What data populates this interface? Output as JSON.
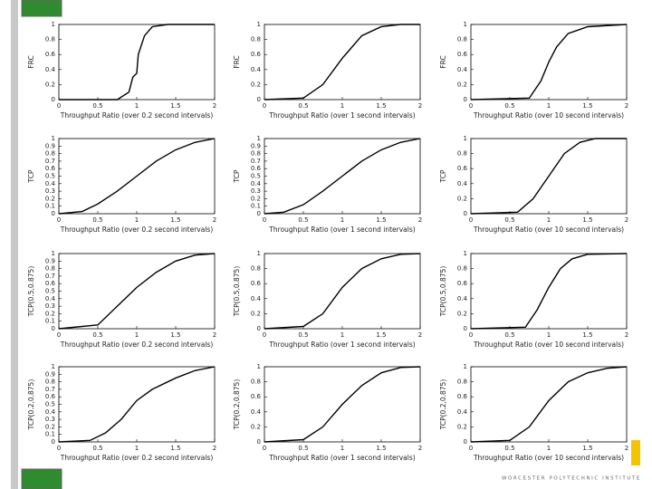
{
  "slide": {
    "footer": "WORCESTER POLYTECHNIC INSTITUTE"
  },
  "chart_data": [
    {
      "type": "line",
      "ylabel": "FRC",
      "xlabel": "Throughput Ratio (over 0.2 second intervals)",
      "color": "#000000",
      "x": [
        0,
        0.75,
        0.9,
        0.95,
        1.0,
        1.02,
        1.1,
        1.2,
        1.4,
        2
      ],
      "values": [
        0,
        0,
        0.1,
        0.3,
        0.35,
        0.6,
        0.85,
        0.97,
        1,
        1
      ],
      "xlim": [
        0,
        2
      ],
      "ylim": [
        0,
        1
      ],
      "xticks": [
        0,
        0.5,
        1,
        1.5,
        2
      ],
      "yticks": [
        0,
        0.2,
        0.4,
        0.6,
        0.8,
        1
      ]
    },
    {
      "type": "line",
      "ylabel": "FRC",
      "xlabel": "Throughput Ratio (over 1 second intervals)",
      "color": "#000000",
      "x": [
        0,
        0.5,
        0.75,
        1,
        1.25,
        1.5,
        1.75,
        2
      ],
      "values": [
        0,
        0.02,
        0.2,
        0.55,
        0.85,
        0.97,
        1,
        1
      ],
      "xlim": [
        0,
        2
      ],
      "ylim": [
        0,
        1
      ],
      "xticks": [
        0,
        0.5,
        1,
        1.5,
        2
      ],
      "yticks": [
        0,
        0.2,
        0.4,
        0.6,
        0.8,
        1
      ]
    },
    {
      "type": "line",
      "ylabel": "FRC",
      "xlabel": "Throughput Ratio (over 10 second intervals)",
      "color": "#000000",
      "x": [
        0,
        0.75,
        0.9,
        1,
        1.1,
        1.25,
        1.5,
        2
      ],
      "values": [
        0,
        0.02,
        0.25,
        0.5,
        0.7,
        0.88,
        0.97,
        1
      ],
      "xlim": [
        0,
        2
      ],
      "ylim": [
        0,
        1
      ],
      "xticks": [
        0,
        0.5,
        1,
        1.5,
        2
      ],
      "yticks": [
        0,
        0.2,
        0.4,
        0.6,
        0.8,
        1
      ]
    },
    {
      "type": "line",
      "ylabel": "TCP",
      "xlabel": "Throughput Ratio (over 0.2 second intervals)",
      "color": "#000000",
      "x": [
        0,
        0.3,
        0.5,
        0.75,
        1,
        1.25,
        1.5,
        1.75,
        2
      ],
      "values": [
        0,
        0.03,
        0.13,
        0.3,
        0.5,
        0.7,
        0.85,
        0.95,
        1
      ],
      "xlim": [
        0,
        2
      ],
      "ylim": [
        0,
        1
      ],
      "xticks": [
        0,
        0.5,
        1,
        1.5,
        2
      ],
      "yticks": [
        0,
        0.1,
        0.2,
        0.3,
        0.4,
        0.5,
        0.6,
        0.7,
        0.8,
        0.9,
        1
      ]
    },
    {
      "type": "line",
      "ylabel": "TCP",
      "xlabel": "Throughput Ratio (over 1 second intervals)",
      "color": "#000000",
      "x": [
        0,
        0.25,
        0.5,
        0.75,
        1,
        1.25,
        1.5,
        1.75,
        2
      ],
      "values": [
        0,
        0.02,
        0.12,
        0.3,
        0.5,
        0.7,
        0.85,
        0.95,
        1
      ],
      "xlim": [
        0,
        2
      ],
      "ylim": [
        0,
        1
      ],
      "xticks": [
        0,
        0.5,
        1,
        1.5,
        2
      ],
      "yticks": [
        0,
        0.1,
        0.2,
        0.3,
        0.4,
        0.5,
        0.6,
        0.7,
        0.8,
        0.9,
        1
      ]
    },
    {
      "type": "line",
      "ylabel": "TCP",
      "xlabel": "Throughput Ratio (over 10 second intervals)",
      "color": "#000000",
      "x": [
        0,
        0.6,
        0.8,
        1,
        1.2,
        1.4,
        1.6,
        2
      ],
      "values": [
        0,
        0.02,
        0.2,
        0.5,
        0.8,
        0.95,
        1,
        1
      ],
      "xlim": [
        0,
        2
      ],
      "ylim": [
        0,
        1
      ],
      "xticks": [
        0,
        0.5,
        1,
        1.5,
        2
      ],
      "yticks": [
        0,
        0.2,
        0.4,
        0.6,
        0.8,
        1
      ]
    },
    {
      "type": "line",
      "ylabel": "TCP(0.5,0.875)",
      "xlabel": "Throughput Ratio (over 0.2 second intervals)",
      "color": "#000000",
      "x": [
        0,
        0.5,
        0.75,
        1,
        1.25,
        1.5,
        1.75,
        2
      ],
      "values": [
        0,
        0.05,
        0.3,
        0.55,
        0.75,
        0.9,
        0.98,
        1
      ],
      "xlim": [
        0,
        2
      ],
      "ylim": [
        0,
        1
      ],
      "xticks": [
        0,
        0.5,
        1,
        1.5,
        2
      ],
      "yticks": [
        0,
        0.1,
        0.2,
        0.3,
        0.4,
        0.5,
        0.6,
        0.7,
        0.8,
        0.9,
        1
      ]
    },
    {
      "type": "line",
      "ylabel": "TCP(0.5,0.875)",
      "xlabel": "Throughput Ratio (over 1 second intervals)",
      "color": "#000000",
      "x": [
        0,
        0.5,
        0.75,
        1,
        1.25,
        1.5,
        1.75,
        2
      ],
      "values": [
        0,
        0.03,
        0.2,
        0.55,
        0.8,
        0.93,
        0.99,
        1
      ],
      "xlim": [
        0,
        2
      ],
      "ylim": [
        0,
        1
      ],
      "xticks": [
        0,
        0.5,
        1,
        1.5,
        2
      ],
      "yticks": [
        0,
        0.2,
        0.4,
        0.6,
        0.8,
        1
      ]
    },
    {
      "type": "line",
      "ylabel": "TCP(0.5,0.875)",
      "xlabel": "Throughput Ratio (over 10 second intervals)",
      "color": "#000000",
      "x": [
        0,
        0.7,
        0.85,
        1,
        1.15,
        1.3,
        1.5,
        2
      ],
      "values": [
        0,
        0.02,
        0.25,
        0.55,
        0.8,
        0.93,
        0.99,
        1
      ],
      "xlim": [
        0,
        2
      ],
      "ylim": [
        0,
        1
      ],
      "xticks": [
        0,
        0.5,
        1,
        1.5,
        2
      ],
      "yticks": [
        0,
        0.2,
        0.4,
        0.6,
        0.8,
        1
      ]
    },
    {
      "type": "line",
      "ylabel": "TCP(0.2,0.875)",
      "xlabel": "Throughput Ratio (over 0.2 second intervals)",
      "color": "#000000",
      "x": [
        0,
        0.4,
        0.6,
        0.8,
        1,
        1.2,
        1.5,
        1.75,
        2
      ],
      "values": [
        0,
        0.02,
        0.12,
        0.3,
        0.55,
        0.7,
        0.85,
        0.95,
        1
      ],
      "xlim": [
        0,
        2
      ],
      "ylim": [
        0,
        1
      ],
      "xticks": [
        0,
        0.5,
        1,
        1.5,
        2
      ],
      "yticks": [
        0,
        0.1,
        0.2,
        0.3,
        0.4,
        0.5,
        0.6,
        0.7,
        0.8,
        0.9,
        1
      ]
    },
    {
      "type": "line",
      "ylabel": "TCP(0.2,0.875)",
      "xlabel": "Throughput Ratio (over 1 second intervals)",
      "color": "#000000",
      "x": [
        0,
        0.5,
        0.75,
        1,
        1.25,
        1.5,
        1.75,
        2
      ],
      "values": [
        0,
        0.03,
        0.2,
        0.5,
        0.75,
        0.92,
        0.99,
        1
      ],
      "xlim": [
        0,
        2
      ],
      "ylim": [
        0,
        1
      ],
      "xticks": [
        0,
        0.5,
        1,
        1.5,
        2
      ],
      "yticks": [
        0,
        0.2,
        0.4,
        0.6,
        0.8,
        1
      ]
    },
    {
      "type": "line",
      "ylabel": "TCP(0.2,0.875)",
      "xlabel": "Throughput Ratio (over 10 second intervals)",
      "color": "#000000",
      "x": [
        0,
        0.5,
        0.75,
        1,
        1.25,
        1.5,
        1.75,
        2
      ],
      "values": [
        0,
        0.02,
        0.2,
        0.55,
        0.8,
        0.92,
        0.98,
        1
      ],
      "xlim": [
        0,
        2
      ],
      "ylim": [
        0,
        1
      ],
      "xticks": [
        0,
        0.5,
        1,
        1.5,
        2
      ],
      "yticks": [
        0,
        0.2,
        0.4,
        0.6,
        0.8,
        1
      ]
    }
  ]
}
